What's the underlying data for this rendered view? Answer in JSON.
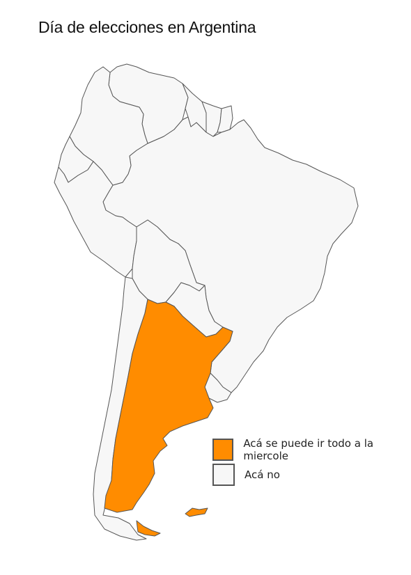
{
  "title": "Día de elecciones en Argentina",
  "colors": {
    "highlight": "#ff8c00",
    "other": "#f7f7f7",
    "border": "#555555"
  },
  "legend": [
    {
      "label": "Acá se puede ir todo a la miercole",
      "color": "#ff8c00"
    },
    {
      "label": "Acá no",
      "color": "#f7f7f7"
    }
  ],
  "regions": [
    {
      "name": "Argentina",
      "highlighted": true
    },
    {
      "name": "Falkland Islands",
      "highlighted": true
    },
    {
      "name": "Chile",
      "highlighted": false
    },
    {
      "name": "Brazil",
      "highlighted": false
    },
    {
      "name": "Bolivia",
      "highlighted": false
    },
    {
      "name": "Peru",
      "highlighted": false
    },
    {
      "name": "Ecuador",
      "highlighted": false
    },
    {
      "name": "Colombia",
      "highlighted": false
    },
    {
      "name": "Venezuela",
      "highlighted": false
    },
    {
      "name": "Guyana",
      "highlighted": false
    },
    {
      "name": "Suriname",
      "highlighted": false
    },
    {
      "name": "French Guiana",
      "highlighted": false
    },
    {
      "name": "Paraguay",
      "highlighted": false
    },
    {
      "name": "Uruguay",
      "highlighted": false
    }
  ]
}
